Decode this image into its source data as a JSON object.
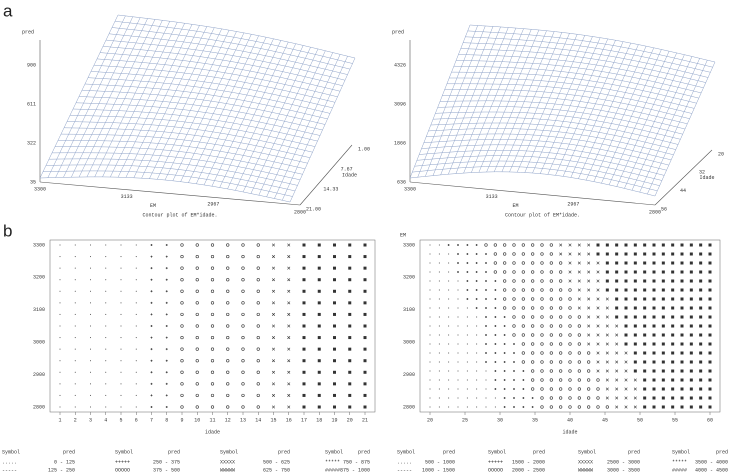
{
  "label_a": "a",
  "label_b": "b",
  "surfaces": [
    {
      "z_label": "pred",
      "z_ticks": [
        "900",
        "611",
        "322",
        "35"
      ],
      "x_label": "EM",
      "x_ticks": [
        "3300",
        "3133",
        "2967",
        "2800"
      ],
      "y_label": "Idade",
      "y_ticks": [
        "1.00",
        "7.67",
        "14.33",
        "21.00"
      ],
      "caption": "Contour plot of EM*idade."
    },
    {
      "z_label": "pred",
      "z_ticks": [
        "4326",
        "3096",
        "1866",
        "636"
      ],
      "x_label": "EM",
      "x_ticks": [
        "3300",
        "3133",
        "2967",
        "2800"
      ],
      "y_label": "Idade",
      "y_ticks": [
        "20",
        "32",
        "44",
        "56"
      ],
      "caption": "Contour plot of EM*idade."
    }
  ],
  "contours": [
    {
      "y_ticks": [
        "3300",
        "3200",
        "3100",
        "3000",
        "2900",
        "2800"
      ],
      "x_ticks": [
        "1",
        "2",
        "3",
        "4",
        "5",
        "6",
        "7",
        "8",
        "9",
        "10",
        "11",
        "12",
        "13",
        "14",
        "15",
        "16",
        "17",
        "18",
        "19",
        "20",
        "21"
      ],
      "x_label": "idade",
      "legend": {
        "headers": [
          "Symbol",
          "pred",
          "Symbol",
          "pred",
          "Symbol",
          "pred",
          "Symbol",
          "pred"
        ],
        "rows": [
          [
            ".....",
            "0 - 125",
            "+++++",
            "250 - 375",
            "XXXXX",
            "500 - 625",
            "*****",
            "750 - 875"
          ],
          [
            "-----",
            "125 - 250",
            "OOOOO",
            "375 - 500",
            "WWWWW",
            "625 - 750",
            "#####",
            "875 - 1000"
          ]
        ]
      }
    },
    {
      "y_label": "EM",
      "y_ticks": [
        "3300",
        "3200",
        "3100",
        "3000",
        "2900",
        "2800"
      ],
      "x_ticks": [
        "20",
        "25",
        "30",
        "35",
        "40",
        "45",
        "50",
        "55",
        "60"
      ],
      "x_label": "idade",
      "legend": {
        "headers": [
          "Symbol",
          "pred",
          "Symbol",
          "pred",
          "Symbol",
          "pred",
          "Symbol",
          "pred"
        ],
        "rows": [
          [
            ".....",
            "500 - 1000",
            "+++++",
            "1500 - 2000",
            "XXXXX",
            "2500 - 3000",
            "*****",
            "3500 - 4000"
          ],
          [
            "-----",
            "1000 - 1500",
            "OOOOO",
            "2000 - 2500",
            "WWWWW",
            "3000 - 3500",
            "#####",
            "4000 - 4500"
          ]
        ]
      }
    }
  ]
}
